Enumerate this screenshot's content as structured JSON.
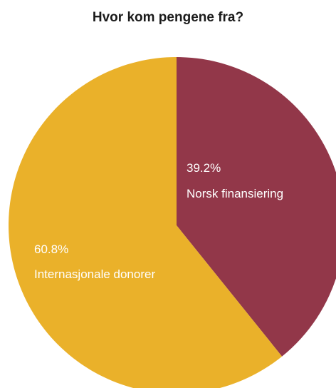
{
  "chart_data": {
    "type": "pie",
    "title": "Hvor kom pengene fra?",
    "slices": [
      {
        "label": "Norsk finansiering",
        "value": 39.2,
        "value_label": "39.2%",
        "color": "#923749"
      },
      {
        "label": "Internasjonale donorer",
        "value": 60.8,
        "value_label": "60.8%",
        "color": "#eab12a"
      }
    ],
    "start_angle_deg": 0,
    "direction": "clockwise",
    "legend": "none"
  }
}
